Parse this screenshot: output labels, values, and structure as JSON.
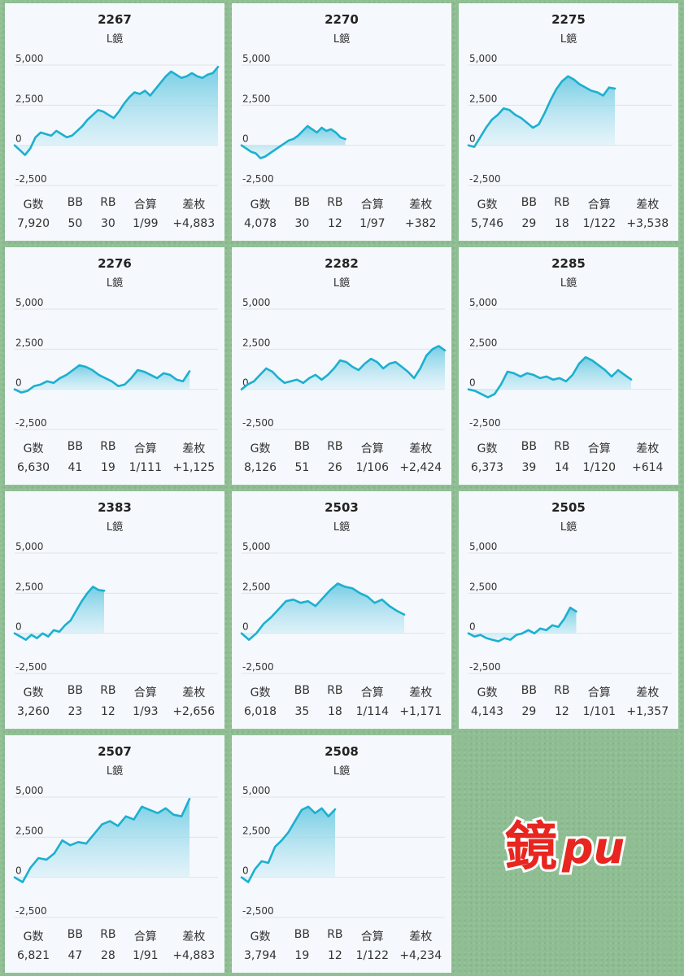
{
  "logo": {
    "kanji": "鏡",
    "latin": "pu"
  },
  "stat_headers": [
    "G数",
    "BB",
    "RB",
    "合算",
    "差枚"
  ],
  "chart_data": [
    {
      "type": "area",
      "title": "2267",
      "subtitle": "L鏡",
      "ylim": [
        -2500,
        5000
      ],
      "yticks": [
        5000,
        2500,
        0,
        -2500
      ],
      "ytick_labels": [
        "5,000",
        "2,500",
        "0",
        "-2,500"
      ],
      "stats": [
        "7,920",
        "50",
        "30",
        "1/99",
        "+4,883"
      ],
      "x_extent": 1.0,
      "values": [
        0,
        -300,
        -600,
        -200,
        500,
        800,
        700,
        600,
        900,
        700,
        500,
        600,
        900,
        1200,
        1600,
        1900,
        2200,
        2100,
        1900,
        1700,
        2100,
        2600,
        3000,
        3300,
        3200,
        3400,
        3100,
        3500,
        3900,
        4300,
        4600,
        4400,
        4200,
        4300,
        4500,
        4300,
        4200,
        4400,
        4500,
        4883
      ]
    },
    {
      "type": "area",
      "title": "2270",
      "subtitle": "L鏡",
      "ylim": [
        -2500,
        5000
      ],
      "yticks": [
        5000,
        2500,
        0,
        -2500
      ],
      "ytick_labels": [
        "5,000",
        "2,500",
        "0",
        "-2,500"
      ],
      "stats": [
        "4,078",
        "30",
        "12",
        "1/97",
        "+382"
      ],
      "x_extent": 0.51,
      "values": [
        0,
        -200,
        -400,
        -500,
        -800,
        -700,
        -500,
        -300,
        -100,
        100,
        300,
        400,
        600,
        900,
        1200,
        1000,
        800,
        1100,
        900,
        1000,
        800,
        500,
        382
      ]
    },
    {
      "type": "area",
      "title": "2275",
      "subtitle": "L鏡",
      "ylim": [
        -2500,
        5000
      ],
      "yticks": [
        5000,
        2500,
        0,
        -2500
      ],
      "ytick_labels": [
        "5,000",
        "2,500",
        "0",
        "-2,500"
      ],
      "stats": [
        "5,746",
        "29",
        "18",
        "1/122",
        "+3,538"
      ],
      "x_extent": 0.72,
      "values": [
        0,
        -100,
        500,
        1100,
        1600,
        1900,
        2300,
        2200,
        1900,
        1700,
        1400,
        1100,
        1300,
        2000,
        2800,
        3500,
        4000,
        4300,
        4100,
        3800,
        3600,
        3400,
        3300,
        3100,
        3600,
        3538
      ]
    },
    {
      "type": "area",
      "title": "2276",
      "subtitle": "L鏡",
      "ylim": [
        -2500,
        5000
      ],
      "yticks": [
        5000,
        2500,
        0,
        -2500
      ],
      "ytick_labels": [
        "5,000",
        "2,500",
        "0",
        "-2,500"
      ],
      "stats": [
        "6,630",
        "41",
        "19",
        "1/111",
        "+1,125"
      ],
      "x_extent": 0.86,
      "values": [
        0,
        -200,
        -100,
        200,
        300,
        500,
        400,
        700,
        900,
        1200,
        1500,
        1400,
        1200,
        900,
        700,
        500,
        200,
        300,
        700,
        1200,
        1100,
        900,
        700,
        1000,
        900,
        600,
        500,
        1125
      ]
    },
    {
      "type": "area",
      "title": "2282",
      "subtitle": "L鏡",
      "ylim": [
        -2500,
        5000
      ],
      "yticks": [
        5000,
        2500,
        0,
        -2500
      ],
      "ytick_labels": [
        "5,000",
        "2,500",
        "0",
        "-2,500"
      ],
      "stats": [
        "8,126",
        "51",
        "26",
        "1/106",
        "+2,424"
      ],
      "x_extent": 1.0,
      "values": [
        0,
        300,
        500,
        900,
        1300,
        1100,
        700,
        400,
        500,
        600,
        400,
        700,
        900,
        600,
        900,
        1300,
        1800,
        1700,
        1400,
        1200,
        1600,
        1900,
        1700,
        1300,
        1600,
        1700,
        1400,
        1100,
        700,
        1300,
        2100,
        2500,
        2700,
        2424
      ]
    },
    {
      "type": "area",
      "title": "2285",
      "subtitle": "L鏡",
      "ylim": [
        -2500,
        5000
      ],
      "yticks": [
        5000,
        2500,
        0,
        -2500
      ],
      "ytick_labels": [
        "5,000",
        "2,500",
        "0",
        "-2,500"
      ],
      "stats": [
        "6,373",
        "39",
        "14",
        "1/120",
        "+614"
      ],
      "x_extent": 0.8,
      "values": [
        0,
        -100,
        -300,
        -500,
        -300,
        300,
        1100,
        1000,
        800,
        1000,
        900,
        700,
        800,
        600,
        700,
        500,
        900,
        1600,
        2000,
        1800,
        1500,
        1200,
        800,
        1200,
        900,
        614
      ]
    },
    {
      "type": "area",
      "title": "2383",
      "subtitle": "L鏡",
      "ylim": [
        -2500,
        5000
      ],
      "yticks": [
        5000,
        2500,
        0,
        -2500
      ],
      "ytick_labels": [
        "5,000",
        "2,500",
        "0",
        "-2,500"
      ],
      "stats": [
        "3,260",
        "23",
        "12",
        "1/93",
        "+2,656"
      ],
      "x_extent": 0.44,
      "values": [
        0,
        -200,
        -400,
        -100,
        -300,
        0,
        -200,
        200,
        100,
        500,
        800,
        1400,
        2000,
        2500,
        2900,
        2700,
        2656
      ]
    },
    {
      "type": "area",
      "title": "2503",
      "subtitle": "L鏡",
      "ylim": [
        -2500,
        5000
      ],
      "yticks": [
        5000,
        2500,
        0,
        -2500
      ],
      "ytick_labels": [
        "5,000",
        "2,500",
        "0",
        "-2,500"
      ],
      "stats": [
        "6,018",
        "35",
        "18",
        "1/114",
        "+1,171"
      ],
      "x_extent": 0.8,
      "values": [
        0,
        -400,
        0,
        600,
        1000,
        1500,
        2000,
        2100,
        1900,
        2000,
        1700,
        2200,
        2700,
        3100,
        2900,
        2800,
        2500,
        2300,
        1900,
        2100,
        1700,
        1400,
        1171
      ]
    },
    {
      "type": "area",
      "title": "2505",
      "subtitle": "L鏡",
      "ylim": [
        -2500,
        5000
      ],
      "yticks": [
        5000,
        2500,
        0,
        -2500
      ],
      "ytick_labels": [
        "5,000",
        "2,500",
        "0",
        "-2,500"
      ],
      "stats": [
        "4,143",
        "29",
        "12",
        "1/101",
        "+1,357"
      ],
      "x_extent": 0.53,
      "values": [
        0,
        -200,
        -100,
        -300,
        -400,
        -500,
        -300,
        -400,
        -100,
        0,
        200,
        0,
        300,
        200,
        500,
        400,
        900,
        1600,
        1357
      ]
    },
    {
      "type": "area",
      "title": "2507",
      "subtitle": "L鏡",
      "ylim": [
        -2500,
        5000
      ],
      "yticks": [
        5000,
        2500,
        0,
        -2500
      ],
      "ytick_labels": [
        "5,000",
        "2,500",
        "0",
        "-2,500"
      ],
      "stats": [
        "6,821",
        "47",
        "28",
        "1/91",
        "+4,883"
      ],
      "x_extent": 0.86,
      "values": [
        0,
        -300,
        600,
        1200,
        1100,
        1500,
        2300,
        2000,
        2200,
        2100,
        2700,
        3300,
        3500,
        3200,
        3800,
        3600,
        4400,
        4200,
        4000,
        4300,
        3900,
        3800,
        4883
      ]
    },
    {
      "type": "area",
      "title": "2508",
      "subtitle": "L鏡",
      "ylim": [
        -2500,
        5000
      ],
      "yticks": [
        5000,
        2500,
        0,
        -2500
      ],
      "ytick_labels": [
        "5,000",
        "2,500",
        "0",
        "-2,500"
      ],
      "stats": [
        "3,794",
        "19",
        "12",
        "1/122",
        "+4,234"
      ],
      "x_extent": 0.46,
      "values": [
        0,
        -300,
        500,
        1000,
        900,
        1900,
        2300,
        2800,
        3500,
        4200,
        4400,
        4000,
        4300,
        3800,
        4234
      ]
    }
  ]
}
